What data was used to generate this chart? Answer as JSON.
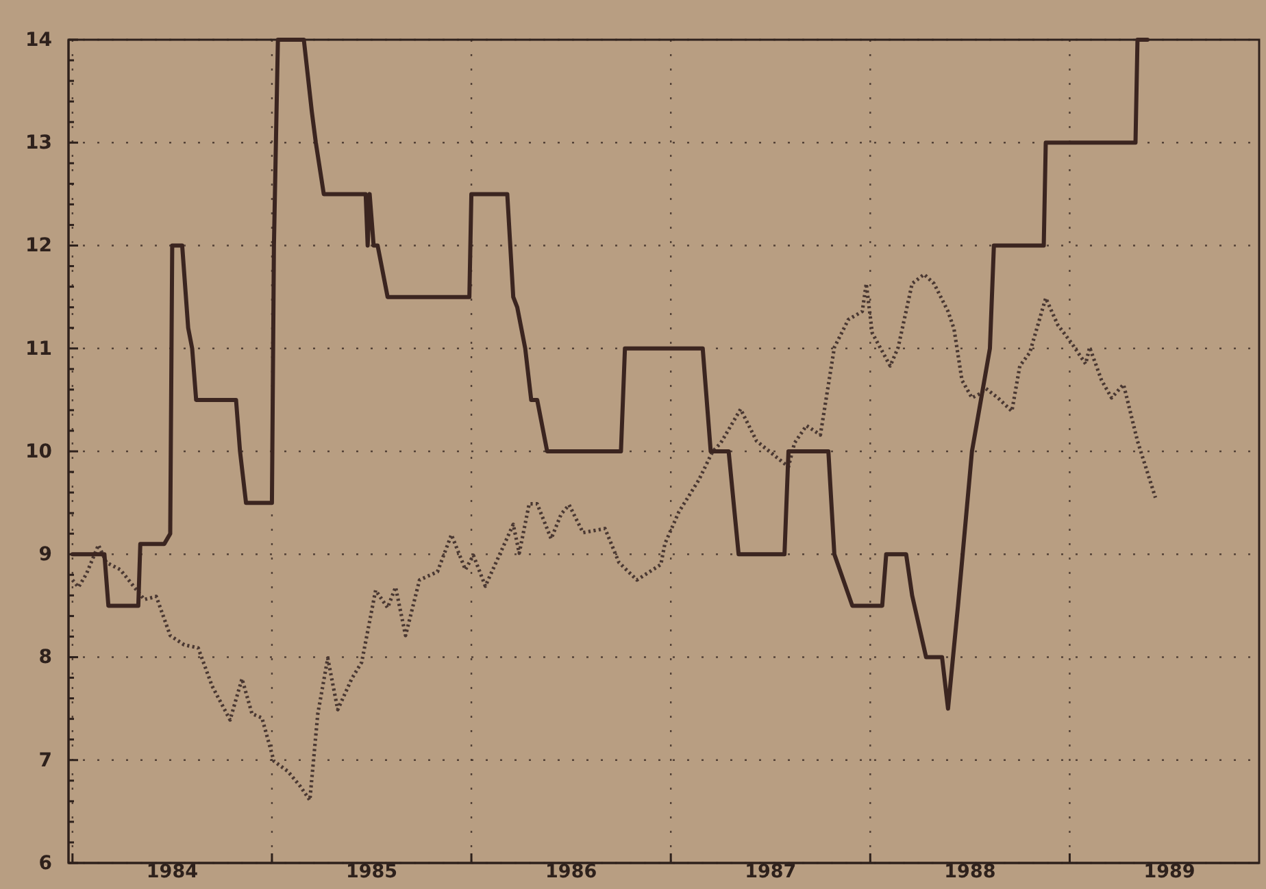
{
  "chart_data": {
    "type": "line",
    "grid": true,
    "xlim": [
      1983.48,
      1989.45
    ],
    "ylim": [
      6,
      14
    ],
    "xticks": [
      {
        "value": 1983.5,
        "label": null
      },
      1984,
      {
        "value": 1984.5,
        "label": null
      },
      1985,
      {
        "value": 1985.5,
        "label": null
      },
      1986,
      {
        "value": 1986.5,
        "label": null
      },
      1987,
      {
        "value": 1987.5,
        "label": null
      },
      1988,
      {
        "value": 1988.5,
        "label": null
      },
      1989
    ],
    "yticks": [
      6,
      {
        "value": 6.2,
        "label": null
      },
      {
        "value": 6.4,
        "label": null
      },
      {
        "value": 6.6,
        "label": null
      },
      {
        "value": 6.8,
        "label": null
      },
      7,
      {
        "value": 7.2,
        "label": null
      },
      {
        "value": 7.4,
        "label": null
      },
      {
        "value": 7.6,
        "label": null
      },
      {
        "value": 7.8,
        "label": null
      },
      8,
      {
        "value": 8.2,
        "label": null
      },
      {
        "value": 8.4,
        "label": null
      },
      {
        "value": 8.6,
        "label": null
      },
      {
        "value": 8.8,
        "label": null
      },
      9,
      {
        "value": 9.2,
        "label": null
      },
      {
        "value": 9.4,
        "label": null
      },
      {
        "value": 9.6,
        "label": null
      },
      {
        "value": 9.8,
        "label": null
      },
      10,
      {
        "value": 10.2,
        "label": null
      },
      {
        "value": 10.4,
        "label": null
      },
      {
        "value": 10.6,
        "label": null
      },
      {
        "value": 10.8,
        "label": null
      },
      11,
      {
        "value": 11.2,
        "label": null
      },
      {
        "value": 11.4,
        "label": null
      },
      {
        "value": 11.6,
        "label": null
      },
      {
        "value": 11.8,
        "label": null
      },
      12,
      {
        "value": 12.2,
        "label": null
      },
      {
        "value": 12.4,
        "label": null
      },
      {
        "value": 12.6,
        "label": null
      },
      {
        "value": 12.8,
        "label": null
      },
      13,
      {
        "value": 13.2,
        "label": null
      },
      {
        "value": 13.4,
        "label": null
      },
      {
        "value": 13.6,
        "label": null
      },
      {
        "value": 13.8,
        "label": null
      },
      14
    ],
    "series": [
      {
        "color": "#3b2520",
        "line_style": "solid",
        "x": [
          1983.5,
          1983.66,
          1983.68,
          1983.83,
          1983.84,
          1983.96,
          1983.99,
          1984.0,
          1984.05,
          1984.08,
          1984.1,
          1984.12,
          1984.32,
          1984.34,
          1984.37,
          1984.5,
          1984.51,
          1984.53,
          1984.66,
          1984.7,
          1984.72,
          1984.76,
          1984.97,
          1984.98,
          1984.99,
          1985.01,
          1985.03,
          1985.08,
          1985.49,
          1985.5,
          1985.68,
          1985.71,
          1985.73,
          1985.77,
          1985.8,
          1985.83,
          1985.88,
          1986.25,
          1986.27,
          1986.66,
          1986.7,
          1986.79,
          1986.84,
          1987.07,
          1987.09,
          1987.29,
          1987.32,
          1987.41,
          1987.56,
          1987.58,
          1987.68,
          1987.71,
          1987.78,
          1987.86,
          1987.89,
          1987.94,
          1988.01,
          1988.1,
          1988.12,
          1988.37,
          1988.38,
          1988.83,
          1988.84,
          1988.89
        ],
        "values": [
          9.0,
          9.0,
          8.5,
          8.5,
          9.1,
          9.1,
          9.2,
          12.0,
          12.0,
          11.2,
          11.0,
          10.5,
          10.5,
          10.0,
          9.5,
          9.5,
          12.0,
          14.0,
          14.0,
          13.3,
          13.0,
          12.5,
          12.5,
          12.0,
          12.5,
          12.0,
          12.0,
          11.5,
          11.5,
          12.5,
          12.5,
          11.5,
          11.4,
          11.0,
          10.5,
          10.5,
          10.0,
          10.0,
          11.0,
          11.0,
          10.0,
          10.0,
          9.0,
          9.0,
          10.0,
          10.0,
          9.0,
          8.5,
          8.5,
          9.0,
          9.0,
          8.6,
          8.0,
          8.0,
          7.5,
          8.5,
          10.0,
          11.0,
          12.0,
          12.0,
          13.0,
          13.0,
          14.0,
          14.0
        ]
      },
      {
        "color": "#4a3832",
        "line_style": "dotted",
        "x": [
          1983.5,
          1983.53,
          1983.57,
          1983.63,
          1983.67,
          1983.74,
          1983.81,
          1983.86,
          1983.92,
          1983.99,
          1984.06,
          1984.13,
          1984.2,
          1984.29,
          1984.35,
          1984.4,
          1984.45,
          1984.51,
          1984.58,
          1984.64,
          1984.69,
          1984.73,
          1984.78,
          1984.83,
          1984.9,
          1984.95,
          1985.02,
          1985.08,
          1985.12,
          1985.17,
          1985.24,
          1985.33,
          1985.4,
          1985.47,
          1985.51,
          1985.57,
          1985.64,
          1985.71,
          1985.74,
          1985.79,
          1985.83,
          1985.9,
          1985.95,
          1985.99,
          1986.06,
          1986.17,
          1986.24,
          1986.33,
          1986.45,
          1986.47,
          1986.54,
          1986.64,
          1986.71,
          1986.75,
          1986.85,
          1986.93,
          1987.09,
          1987.12,
          1987.18,
          1987.25,
          1987.32,
          1987.39,
          1987.46,
          1987.48,
          1987.51,
          1987.6,
          1987.64,
          1987.71,
          1987.77,
          1987.82,
          1987.89,
          1987.92,
          1987.96,
          1988.01,
          1988.05,
          1988.08,
          1988.14,
          1988.21,
          1988.25,
          1988.3,
          1988.38,
          1988.44,
          1988.51,
          1988.58,
          1988.6,
          1988.66,
          1988.71,
          1988.77,
          1988.84,
          1988.93
        ],
        "values": [
          8.75,
          8.68,
          8.81,
          9.09,
          8.92,
          8.85,
          8.68,
          8.56,
          8.59,
          8.21,
          8.12,
          8.09,
          7.72,
          7.39,
          7.79,
          7.45,
          7.41,
          6.99,
          6.89,
          6.75,
          6.61,
          7.45,
          7.99,
          7.49,
          7.79,
          7.95,
          8.65,
          8.48,
          8.68,
          8.21,
          8.75,
          8.83,
          9.19,
          8.85,
          8.99,
          8.69,
          8.99,
          9.29,
          9.01,
          9.49,
          9.49,
          9.15,
          9.39,
          9.48,
          9.21,
          9.25,
          8.92,
          8.75,
          8.9,
          9.1,
          9.41,
          9.72,
          10.0,
          10.08,
          10.41,
          10.1,
          9.85,
          10.08,
          10.25,
          10.16,
          11.01,
          11.28,
          11.36,
          11.63,
          11.15,
          10.83,
          11.01,
          11.63,
          11.72,
          11.63,
          11.36,
          11.19,
          10.69,
          10.52,
          10.56,
          10.61,
          10.52,
          10.39,
          10.83,
          10.96,
          11.49,
          11.23,
          11.05,
          10.85,
          11.01,
          10.69,
          10.52,
          10.65,
          10.1,
          9.55
        ]
      }
    ]
  }
}
